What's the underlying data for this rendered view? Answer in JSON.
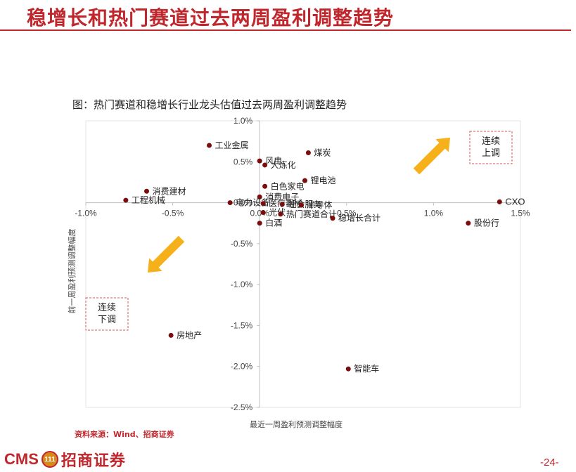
{
  "header": {
    "title": "稳增长和热门赛道过去两周盈利调整趋势"
  },
  "figure_title": "图：热门赛道和稳增长行业龙头估值过去两周盈利调整趋势",
  "source": "资料来源：Wind、招商证券",
  "logo": {
    "cms": "CMS",
    "badge": "111",
    "name": "招商证券"
  },
  "page_number": "-24-",
  "annotations": {
    "upper_right": [
      "连续",
      "上调"
    ],
    "lower_left": [
      "连续",
      "下调"
    ]
  },
  "colors": {
    "accent": "#c0272d",
    "point": "#7b0d0d",
    "arrow": "#f5b01a",
    "axis": "#bfbfbf"
  },
  "chart_data": {
    "type": "scatter",
    "xlabel": "最近一周盈利预测调整幅度",
    "ylabel": "前一周盈利预测调整幅度",
    "xlim": [
      -1.0,
      1.5
    ],
    "ylim": [
      -2.5,
      1.0
    ],
    "x_ticks": [
      -1.0,
      -0.5,
      0.0,
      0.5,
      1.0,
      1.5
    ],
    "x_tick_labels": [
      "-1.0%",
      "-0.5%",
      "0.0%",
      "0.5%",
      "1.0%",
      "1.5%"
    ],
    "y_ticks": [
      1.0,
      0.5,
      0.0,
      -0.5,
      -1.0,
      -1.5,
      -2.0,
      -2.5
    ],
    "y_tick_labels": [
      "1.0%",
      "0.5%",
      "0.0%",
      "-0.5%",
      "-1.0%",
      "-1.5%",
      "-2.0%",
      "-2.5%"
    ],
    "grid": false,
    "points": [
      {
        "label": "工业金属",
        "x": -0.29,
        "y": 0.7
      },
      {
        "label": "煤炭",
        "x": 0.28,
        "y": 0.61
      },
      {
        "label": "风电",
        "x": 0.0,
        "y": 0.51
      },
      {
        "label": "大炼化",
        "x": 0.03,
        "y": 0.46
      },
      {
        "label": "锂电池",
        "x": 0.26,
        "y": 0.27
      },
      {
        "label": "白色家电",
        "x": 0.03,
        "y": 0.2
      },
      {
        "label": "消费建材",
        "x": -0.65,
        "y": 0.14
      },
      {
        "label": "消费电子",
        "x": 0.0,
        "y": 0.07
      },
      {
        "label": "工程机械",
        "x": -0.77,
        "y": 0.03
      },
      {
        "label": "CXO",
        "x": 1.38,
        "y": 0.01
      },
      {
        "label": "电力设备",
        "x": -0.17,
        "y": 0.0
      },
      {
        "label": "医疗器械",
        "x": 0.02,
        "y": -0.01
      },
      {
        "label": "社会服务",
        "x": 0.13,
        "y": -0.02
      },
      {
        "label": "半导体",
        "x": 0.24,
        "y": -0.03
      },
      {
        "label": "光伏",
        "x": 0.02,
        "y": -0.12
      },
      {
        "label": "热门赛道合计",
        "x": 0.12,
        "y": -0.14
      },
      {
        "label": "稳增长合计",
        "x": 0.42,
        "y": -0.19
      },
      {
        "label": "白酒",
        "x": 0.0,
        "y": -0.25
      },
      {
        "label": "股份行",
        "x": 1.2,
        "y": -0.25
      },
      {
        "label": "房地产",
        "x": -0.51,
        "y": -1.62
      },
      {
        "label": "智能车",
        "x": 0.51,
        "y": -2.03
      }
    ]
  }
}
